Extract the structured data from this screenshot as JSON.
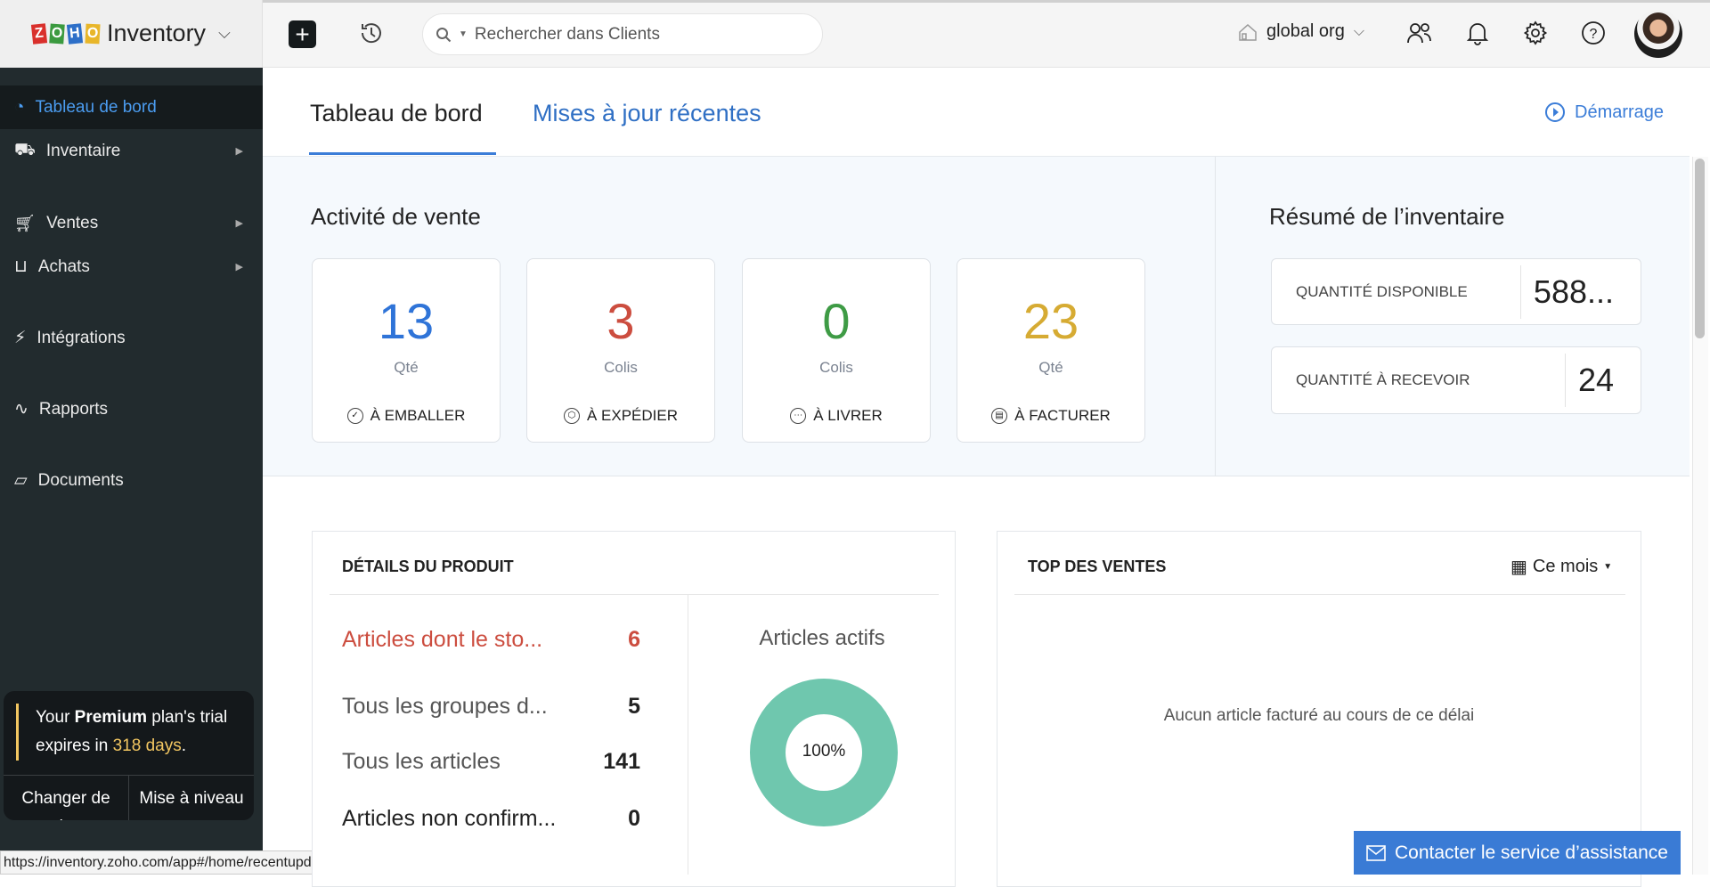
{
  "app": {
    "logo_letters": [
      "Z",
      "O",
      "H",
      "O"
    ],
    "name": "Inventory"
  },
  "header": {
    "search_placeholder": "Rechercher dans Clients",
    "org": "global org"
  },
  "sidebar": {
    "items": [
      {
        "label": "Tableau de bord",
        "active": true
      },
      {
        "label": "Inventaire",
        "submenu": true
      },
      {
        "label": "Ventes",
        "submenu": true
      },
      {
        "label": "Achats",
        "submenu": true
      },
      {
        "label": "Intégrations"
      },
      {
        "label": "Rapports"
      },
      {
        "label": "Documents"
      }
    ],
    "trial": {
      "pre": "Your ",
      "plan": "Premium",
      "mid": " plan's trial",
      "line2": "expires in ",
      "days": "318 days",
      "end": ".",
      "change_plan": "Changer de plan",
      "upgrade": "Mise à niveau"
    }
  },
  "status_url": "https://inventory.zoho.com/app#/home/recentupdates",
  "tabs": [
    {
      "label": "Tableau de bord",
      "active": true
    },
    {
      "label": "Mises à jour récentes"
    }
  ],
  "getting_started": "Démarrage",
  "sales_activity": {
    "title": "Activité de vente",
    "cards": [
      {
        "value": "13",
        "unit": "Qté",
        "label": "À EMBALLER",
        "color": "#2f74d8",
        "icon": "check-circle-icon"
      },
      {
        "value": "3",
        "unit": "Colis",
        "label": "À EXPÉDIER",
        "color": "#cc4d3f",
        "icon": "package-icon"
      },
      {
        "value": "0",
        "unit": "Colis",
        "label": "À LIVRER",
        "color": "#3e9b45",
        "icon": "truck-dots-icon"
      },
      {
        "value": "23",
        "unit": "Qté",
        "label": "À FACTURER",
        "color": "#d6ab33",
        "icon": "invoice-icon"
      }
    ]
  },
  "inventory_summary": {
    "title": "Résumé de l’inventaire",
    "rows": [
      {
        "label": "QUANTITÉ DISPONIBLE",
        "value": "588..."
      },
      {
        "label": "QUANTITÉ À RECEVOIR",
        "value": "24"
      }
    ]
  },
  "product_details": {
    "title": "DÉTAILS DU PRODUIT",
    "rows": [
      {
        "label": "Articles dont le sto...",
        "value": "6",
        "alert": true
      },
      {
        "label": "Tous les groupes d...",
        "value": "5"
      },
      {
        "label": "Tous les articles",
        "value": "141"
      },
      {
        "label": "Articles non confirm...",
        "value": "0"
      }
    ],
    "active_items": {
      "title": "Articles actifs",
      "percent": "100%",
      "fill_color": "#6fc7ae"
    }
  },
  "top_sales": {
    "title": "TOP DES VENTES",
    "period": "Ce mois",
    "empty": "Aucun article facturé au cours de ce délai"
  },
  "contact_support": "Contacter le service d’assistance"
}
